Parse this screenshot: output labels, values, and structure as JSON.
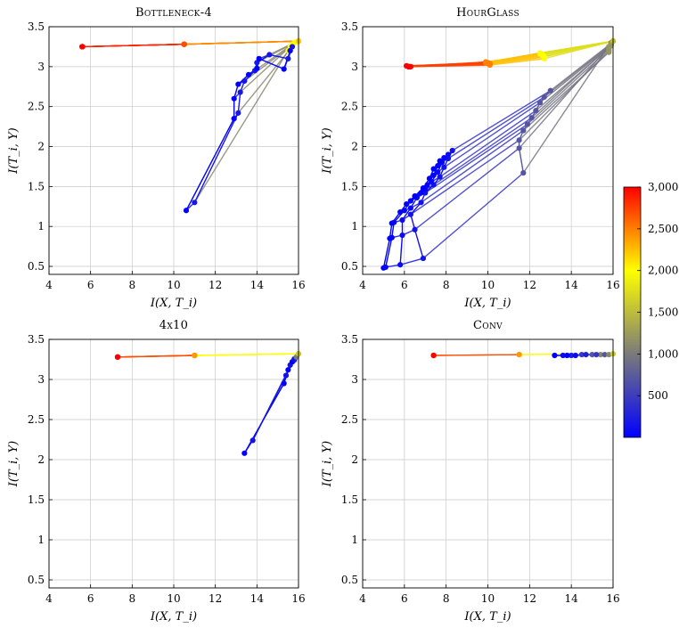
{
  "figure": {
    "colormap": {
      "stops": [
        "#0000ff",
        "#7a7a7a",
        "#ffff00",
        "#ff0000"
      ],
      "min": 1,
      "max": 3000,
      "ticks": [
        500,
        1000,
        1500,
        2000,
        2500,
        3000
      ],
      "tick_labels": [
        "500",
        "1,000",
        "1,500",
        "2,000",
        "2,500",
        "3,000"
      ]
    }
  },
  "chart_data": [
    {
      "type": "line",
      "title": "Bottleneck-4",
      "xlabel": "I(X, T_i)",
      "ylabel": "I(T_i, Y)",
      "xlim": [
        4,
        16
      ],
      "ylim": [
        0.4,
        3.5
      ],
      "xticks": [
        4,
        6,
        8,
        10,
        12,
        14,
        16
      ],
      "yticks": [
        0.5,
        1,
        1.5,
        2,
        2.5,
        3,
        3.5
      ],
      "xtick_labels": [
        "4",
        "6",
        "8",
        "10",
        "12",
        "14",
        "16"
      ],
      "ytick_labels": [
        "0.5",
        "1",
        "1.5",
        "2",
        "2.5",
        "3",
        "3.5"
      ],
      "grid": true,
      "trajectories": [
        [
          [
            10.6,
            1.2
          ],
          [
            11.0,
            1.3
          ],
          [
            15.5,
            3.2
          ],
          [
            16.0,
            3.32
          ],
          [
            10.5,
            3.28
          ],
          [
            5.6,
            3.25
          ]
        ],
        [
          [
            12.9,
            2.35
          ],
          [
            13.1,
            2.42
          ],
          [
            15.6,
            3.22
          ],
          [
            16.0,
            3.32
          ],
          [
            10.5,
            3.28
          ],
          [
            5.6,
            3.25
          ]
        ],
        [
          [
            12.9,
            2.6
          ],
          [
            13.2,
            2.68
          ],
          [
            15.6,
            3.25
          ],
          [
            16.0,
            3.32
          ],
          [
            10.5,
            3.28
          ],
          [
            5.6,
            3.25
          ]
        ],
        [
          [
            13.1,
            2.78
          ],
          [
            13.4,
            2.82
          ],
          [
            15.7,
            3.27
          ],
          [
            16.0,
            3.32
          ],
          [
            10.5,
            3.28
          ],
          [
            5.6,
            3.25
          ]
        ],
        [
          [
            13.6,
            2.9
          ],
          [
            13.9,
            2.95
          ],
          [
            15.7,
            3.28
          ],
          [
            16.0,
            3.32
          ],
          [
            10.5,
            3.28
          ],
          [
            5.6,
            3.25
          ]
        ],
        [
          [
            14.0,
            2.98
          ],
          [
            14.0,
            3.05
          ],
          [
            15.8,
            3.3
          ],
          [
            16.0,
            3.32
          ],
          [
            10.5,
            3.28
          ],
          [
            5.6,
            3.25
          ]
        ],
        [
          [
            14.1,
            3.1
          ],
          [
            14.6,
            3.15
          ],
          [
            15.8,
            3.3
          ],
          [
            16.0,
            3.32
          ],
          [
            10.5,
            3.28
          ],
          [
            5.6,
            3.25
          ]
        ],
        [
          [
            15.3,
            2.97
          ],
          [
            15.5,
            3.1
          ],
          [
            15.8,
            3.3
          ],
          [
            16.0,
            3.32
          ],
          [
            10.5,
            3.28
          ],
          [
            5.6,
            3.25
          ]
        ],
        [
          [
            15.6,
            3.2
          ],
          [
            15.7,
            3.25
          ],
          [
            15.9,
            3.31
          ],
          [
            16.0,
            3.32
          ],
          [
            10.5,
            3.28
          ],
          [
            5.6,
            3.25
          ]
        ]
      ],
      "trajectory_epochs": [
        1,
        200,
        2000,
        2200,
        2700,
        3000
      ]
    },
    {
      "type": "line",
      "title": "HourGlass",
      "xlabel": "I(X, T_i)",
      "ylabel": "I(T_i, Y)",
      "xlim": [
        4,
        16
      ],
      "ylim": [
        0.4,
        3.5
      ],
      "xticks": [
        4,
        6,
        8,
        10,
        12,
        14,
        16
      ],
      "yticks": [
        0.5,
        1,
        1.5,
        2,
        2.5,
        3,
        3.5
      ],
      "xtick_labels": [
        "4",
        "6",
        "8",
        "10",
        "12",
        "14",
        "16"
      ],
      "ytick_labels": [
        "0.5",
        "1",
        "1.5",
        "2",
        "2.5",
        "3",
        "3.5"
      ],
      "grid": true,
      "trajectories": [
        [
          [
            5.0,
            0.48
          ],
          [
            5.1,
            0.49
          ],
          [
            5.8,
            0.52
          ],
          [
            6.9,
            0.6
          ],
          [
            11.7,
            1.67
          ],
          [
            15.9,
            3.3
          ],
          [
            16.0,
            3.32
          ],
          [
            12.5,
            3.17
          ],
          [
            9.9,
            3.05
          ],
          [
            6.1,
            3.01
          ]
        ],
        [
          [
            5.3,
            0.85
          ],
          [
            5.4,
            0.86
          ],
          [
            5.9,
            0.89
          ],
          [
            6.5,
            0.96
          ],
          [
            11.5,
            1.98
          ],
          [
            15.8,
            3.25
          ],
          [
            16.0,
            3.32
          ],
          [
            12.5,
            3.17
          ],
          [
            9.9,
            3.05
          ],
          [
            6.1,
            3.01
          ]
        ],
        [
          [
            5.4,
            1.04
          ],
          [
            5.5,
            1.05
          ],
          [
            5.9,
            1.08
          ],
          [
            6.3,
            1.15
          ],
          [
            11.5,
            2.08
          ],
          [
            15.8,
            3.2
          ],
          [
            16.0,
            3.32
          ],
          [
            12.5,
            3.17
          ],
          [
            9.9,
            3.05
          ],
          [
            6.2,
            3.0
          ]
        ],
        [
          [
            5.8,
            1.18
          ],
          [
            6.0,
            1.2
          ],
          [
            6.3,
            1.23
          ],
          [
            6.8,
            1.3
          ],
          [
            11.7,
            2.2
          ],
          [
            15.8,
            3.18
          ],
          [
            16.0,
            3.32
          ],
          [
            12.5,
            3.16
          ],
          [
            9.9,
            3.05
          ],
          [
            6.2,
            3.0
          ]
        ],
        [
          [
            6.1,
            1.28
          ],
          [
            6.3,
            1.32
          ],
          [
            6.6,
            1.36
          ],
          [
            7.0,
            1.42
          ],
          [
            11.9,
            2.28
          ],
          [
            15.8,
            3.22
          ],
          [
            16.0,
            3.32
          ],
          [
            12.6,
            3.16
          ],
          [
            9.9,
            3.06
          ],
          [
            6.2,
            3.0
          ]
        ],
        [
          [
            6.5,
            1.38
          ],
          [
            6.8,
            1.42
          ],
          [
            7.0,
            1.46
          ],
          [
            7.4,
            1.52
          ],
          [
            12.1,
            2.36
          ],
          [
            15.8,
            3.25
          ],
          [
            16.0,
            3.32
          ],
          [
            12.6,
            3.15
          ],
          [
            10.0,
            3.05
          ],
          [
            6.2,
            3.0
          ]
        ],
        [
          [
            6.9,
            1.48
          ],
          [
            7.1,
            1.52
          ],
          [
            7.3,
            1.56
          ],
          [
            7.7,
            1.62
          ],
          [
            12.3,
            2.45
          ],
          [
            15.9,
            3.26
          ],
          [
            16.0,
            3.32
          ],
          [
            12.6,
            3.14
          ],
          [
            10.0,
            3.04
          ],
          [
            6.2,
            3.0
          ]
        ],
        [
          [
            7.2,
            1.6
          ],
          [
            7.4,
            1.64
          ],
          [
            7.6,
            1.68
          ],
          [
            7.9,
            1.74
          ],
          [
            12.5,
            2.55
          ],
          [
            15.9,
            3.27
          ],
          [
            16.0,
            3.32
          ],
          [
            12.7,
            3.13
          ],
          [
            10.1,
            3.04
          ],
          [
            6.2,
            3.0
          ]
        ],
        [
          [
            7.4,
            1.72
          ],
          [
            7.6,
            1.76
          ],
          [
            7.8,
            1.8
          ],
          [
            8.1,
            1.85
          ],
          [
            12.7,
            2.62
          ],
          [
            15.9,
            3.28
          ],
          [
            16.0,
            3.32
          ],
          [
            12.7,
            3.12
          ],
          [
            10.1,
            3.03
          ],
          [
            6.3,
            3.0
          ]
        ],
        [
          [
            7.7,
            1.82
          ],
          [
            7.9,
            1.86
          ],
          [
            8.1,
            1.9
          ],
          [
            8.3,
            1.95
          ],
          [
            13.0,
            2.7
          ],
          [
            15.9,
            3.29
          ],
          [
            16.0,
            3.32
          ],
          [
            12.7,
            3.1
          ],
          [
            10.1,
            3.02
          ],
          [
            6.3,
            3.0
          ]
        ]
      ],
      "trajectory_epochs": [
        1,
        30,
        80,
        150,
        700,
        1200,
        1500,
        2000,
        2500,
        3000
      ]
    },
    {
      "type": "line",
      "title": "4x10",
      "xlabel": "I(X, T_i)",
      "ylabel": "I(T_i, Y)",
      "xlim": [
        4,
        16
      ],
      "ylim": [
        0.4,
        3.5
      ],
      "xticks": [
        4,
        6,
        8,
        10,
        12,
        14,
        16
      ],
      "yticks": [
        0.5,
        1,
        1.5,
        2,
        2.5,
        3,
        3.5
      ],
      "xtick_labels": [
        "4",
        "6",
        "8",
        "10",
        "12",
        "14",
        "16"
      ],
      "ytick_labels": [
        "0.5",
        "1",
        "1.5",
        "2",
        "2.5",
        "3",
        "3.5"
      ],
      "grid": true,
      "trajectories": [
        [
          [
            13.4,
            2.08
          ],
          [
            13.8,
            2.24
          ],
          [
            15.7,
            3.22
          ],
          [
            16.0,
            3.32
          ],
          [
            11.0,
            3.3
          ],
          [
            7.3,
            3.28
          ]
        ],
        [
          [
            15.3,
            2.95
          ],
          [
            15.4,
            3.05
          ],
          [
            15.8,
            3.24
          ],
          [
            16.0,
            3.32
          ],
          [
            11.0,
            3.3
          ],
          [
            7.3,
            3.28
          ]
        ],
        [
          [
            15.5,
            3.12
          ],
          [
            15.6,
            3.18
          ],
          [
            15.8,
            3.26
          ],
          [
            16.0,
            3.32
          ],
          [
            11.0,
            3.3
          ],
          [
            7.3,
            3.28
          ]
        ],
        [
          [
            15.7,
            3.22
          ],
          [
            15.8,
            3.25
          ],
          [
            15.9,
            3.28
          ],
          [
            16.0,
            3.32
          ],
          [
            11.0,
            3.3
          ],
          [
            7.3,
            3.28
          ]
        ]
      ],
      "trajectory_epochs": [
        1,
        150,
        1000,
        1600,
        2400,
        3000
      ]
    },
    {
      "type": "line",
      "title": "Conv",
      "xlabel": "I(X, T_i)",
      "ylabel": "I(T_i, Y)",
      "xlim": [
        4,
        16
      ],
      "ylim": [
        0.4,
        3.5
      ],
      "xticks": [
        4,
        6,
        8,
        10,
        12,
        14,
        16
      ],
      "yticks": [
        0.5,
        1,
        1.5,
        2,
        2.5,
        3,
        3.5
      ],
      "xtick_labels": [
        "4",
        "6",
        "8",
        "10",
        "12",
        "14",
        "16"
      ],
      "ytick_labels": [
        "0.5",
        "1",
        "1.5",
        "2",
        "2.5",
        "3",
        "3.5"
      ],
      "grid": true,
      "trajectories": [
        [
          [
            13.2,
            3.3
          ],
          [
            13.6,
            3.3
          ],
          [
            14.0,
            3.3
          ],
          [
            14.5,
            3.31
          ],
          [
            15.0,
            3.31
          ],
          [
            15.4,
            3.31
          ],
          [
            16.0,
            3.32
          ],
          [
            11.5,
            3.31
          ],
          [
            7.4,
            3.3
          ]
        ],
        [
          [
            13.8,
            3.3
          ],
          [
            14.2,
            3.3
          ],
          [
            14.7,
            3.31
          ],
          [
            15.2,
            3.31
          ],
          [
            15.6,
            3.31
          ],
          [
            15.8,
            3.31
          ],
          [
            16.0,
            3.32
          ],
          [
            11.5,
            3.31
          ],
          [
            7.4,
            3.3
          ]
        ]
      ],
      "trajectory_epochs": [
        1,
        100,
        250,
        450,
        700,
        1100,
        1600,
        2400,
        3000
      ]
    }
  ]
}
